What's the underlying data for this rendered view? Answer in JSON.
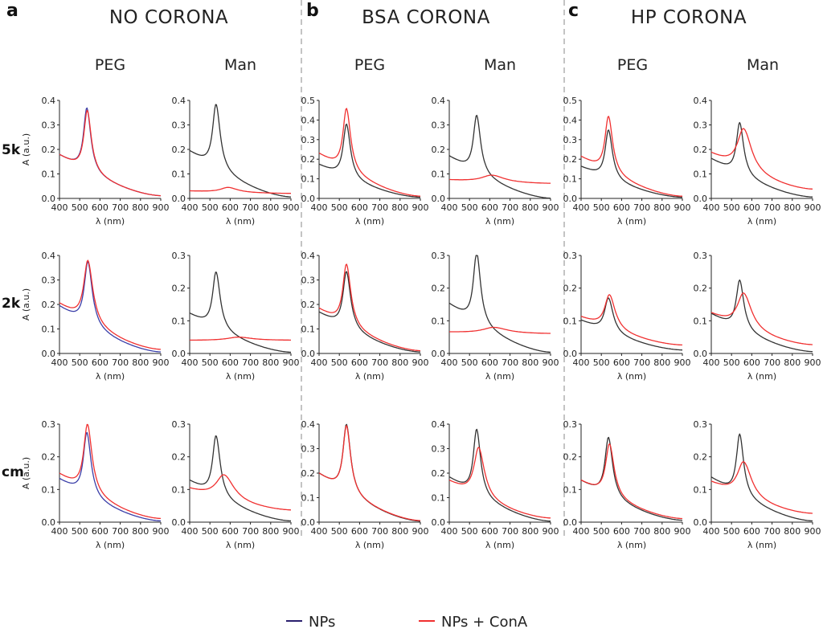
{
  "chart_data": {
    "type": "line",
    "x_range": [
      400,
      900
    ],
    "x_ticks": [
      400,
      500,
      600,
      700,
      800,
      900
    ],
    "xlabel": "λ (nm)",
    "ylabel": "A (a.u.)",
    "legend": {
      "position": "bottom",
      "items": [
        {
          "name": "NPs",
          "color": "#2a1f6e"
        },
        {
          "name": "NPs + ConA",
          "color": "#f03030"
        }
      ]
    },
    "panel_groups": [
      {
        "letter": "a",
        "title": "NO CORONA"
      },
      {
        "letter": "b",
        "title": "BSA CORONA"
      },
      {
        "letter": "c",
        "title": "HP CORONA"
      }
    ],
    "column_labels": [
      "PEG",
      "Man",
      "PEG",
      "Man",
      "PEG",
      "Man"
    ],
    "row_labels": [
      "5k",
      "2k",
      "cm"
    ],
    "panels": [
      {
        "id": "a-PEG-5k",
        "group": "NO CORONA",
        "ligand": "PEG",
        "row": "5k",
        "ylim": [
          0,
          0.4
        ],
        "yticks": [
          0,
          0.1,
          0.2,
          0.3,
          0.4
        ],
        "np_color": "#3a3ea8",
        "series": [
          {
            "name": "NPs",
            "peak": 0.37,
            "peak_nm": 535,
            "base": 0.175,
            "tail": 0.01,
            "width": 38
          },
          {
            "name": "NPs + ConA",
            "peak": 0.36,
            "peak_nm": 537,
            "base": 0.175,
            "tail": 0.01,
            "width": 39
          }
        ]
      },
      {
        "id": "a-Man-5k",
        "group": "NO CORONA",
        "ligand": "Man",
        "row": "5k",
        "ylim": [
          0,
          0.4
        ],
        "yticks": [
          0,
          0.1,
          0.2,
          0.3,
          0.4
        ],
        "np_color": "#333333",
        "series": [
          {
            "name": "NPs",
            "peak": 0.385,
            "peak_nm": 530,
            "base": 0.19,
            "tail": 0.005,
            "width": 40
          },
          {
            "name": "NPs + ConA",
            "peak": 0.045,
            "peak_nm": 590,
            "base": 0.03,
            "tail": 0.02,
            "width": 90
          }
        ]
      },
      {
        "id": "b-PEG-5k",
        "group": "BSA CORONA",
        "ligand": "PEG",
        "row": "5k",
        "ylim": [
          0,
          0.5
        ],
        "yticks": [
          0,
          0.1,
          0.2,
          0.3,
          0.4,
          0.5
        ],
        "np_color": "#333333",
        "series": [
          {
            "name": "NPs",
            "peak": 0.38,
            "peak_nm": 535,
            "base": 0.17,
            "tail": 0.005,
            "width": 38
          },
          {
            "name": "NPs + ConA",
            "peak": 0.46,
            "peak_nm": 535,
            "base": 0.225,
            "tail": 0.01,
            "width": 40
          }
        ]
      },
      {
        "id": "b-Man-5k",
        "group": "BSA CORONA",
        "ligand": "Man",
        "row": "5k",
        "ylim": [
          0,
          0.4
        ],
        "yticks": [
          0,
          0.1,
          0.2,
          0.3,
          0.4
        ],
        "np_color": "#333333",
        "series": [
          {
            "name": "NPs",
            "peak": 0.34,
            "peak_nm": 535,
            "base": 0.17,
            "tail": 0.0,
            "width": 38
          },
          {
            "name": "NPs + ConA",
            "peak": 0.095,
            "peak_nm": 610,
            "base": 0.075,
            "tail": 0.06,
            "width": 120
          }
        ]
      },
      {
        "id": "c-PEG-5k",
        "group": "HP CORONA",
        "ligand": "PEG",
        "row": "5k",
        "ylim": [
          0,
          0.5
        ],
        "yticks": [
          0,
          0.1,
          0.2,
          0.3,
          0.4,
          0.5
        ],
        "np_color": "#333333",
        "series": [
          {
            "name": "NPs",
            "peak": 0.35,
            "peak_nm": 535,
            "base": 0.16,
            "tail": 0.005,
            "width": 38
          },
          {
            "name": "NPs + ConA",
            "peak": 0.42,
            "peak_nm": 535,
            "base": 0.21,
            "tail": 0.01,
            "width": 40
          }
        ]
      },
      {
        "id": "c-Man-5k",
        "group": "HP CORONA",
        "ligand": "Man",
        "row": "5k",
        "ylim": [
          0,
          0.4
        ],
        "yticks": [
          0,
          0.1,
          0.2,
          0.3,
          0.4
        ],
        "np_color": "#333333",
        "series": [
          {
            "name": "NPs",
            "peak": 0.31,
            "peak_nm": 540,
            "base": 0.16,
            "tail": 0.005,
            "width": 38
          },
          {
            "name": "NPs + ConA",
            "peak": 0.285,
            "peak_nm": 560,
            "base": 0.18,
            "tail": 0.035,
            "width": 75
          }
        ]
      },
      {
        "id": "a-PEG-2k",
        "group": "NO CORONA",
        "ligand": "PEG",
        "row": "2k",
        "ylim": [
          0,
          0.4
        ],
        "yticks": [
          0,
          0.1,
          0.2,
          0.3,
          0.4
        ],
        "np_color": "#3a3ea8",
        "series": [
          {
            "name": "NPs",
            "peak": 0.375,
            "peak_nm": 540,
            "base": 0.19,
            "tail": 0.005,
            "width": 42
          },
          {
            "name": "NPs + ConA",
            "peak": 0.38,
            "peak_nm": 540,
            "base": 0.2,
            "tail": 0.015,
            "width": 48
          }
        ]
      },
      {
        "id": "a-Man-2k",
        "group": "NO CORONA",
        "ligand": "Man",
        "row": "2k",
        "ylim": [
          0,
          0.3
        ],
        "yticks": [
          0,
          0.1,
          0.2,
          0.3
        ],
        "np_color": "#333333",
        "series": [
          {
            "name": "NPs",
            "peak": 0.25,
            "peak_nm": 530,
            "base": 0.12,
            "tail": 0.003,
            "width": 40
          },
          {
            "name": "NPs + ConA",
            "peak": 0.05,
            "peak_nm": 640,
            "base": 0.04,
            "tail": 0.04,
            "width": 130
          }
        ]
      },
      {
        "id": "b-PEG-2k",
        "group": "BSA CORONA",
        "ligand": "PEG",
        "row": "2k",
        "ylim": [
          0,
          0.4
        ],
        "yticks": [
          0,
          0.1,
          0.2,
          0.3,
          0.4
        ],
        "np_color": "#333333",
        "series": [
          {
            "name": "NPs",
            "peak": 0.335,
            "peak_nm": 535,
            "base": 0.165,
            "tail": 0.005,
            "width": 40
          },
          {
            "name": "NPs + ConA",
            "peak": 0.365,
            "peak_nm": 535,
            "base": 0.18,
            "tail": 0.01,
            "width": 42
          }
        ]
      },
      {
        "id": "b-Man-2k",
        "group": "BSA CORONA",
        "ligand": "Man",
        "row": "2k",
        "ylim": [
          0,
          0.3
        ],
        "yticks": [
          0,
          0.1,
          0.2,
          0.3
        ],
        "np_color": "#333333",
        "series": [
          {
            "name": "NPs",
            "peak": 0.31,
            "peak_nm": 535,
            "base": 0.15,
            "tail": 0.003,
            "width": 38
          },
          {
            "name": "NPs + ConA",
            "peak": 0.08,
            "peak_nm": 620,
            "base": 0.065,
            "tail": 0.06,
            "width": 130
          }
        ]
      },
      {
        "id": "c-PEG-2k",
        "group": "HP CORONA",
        "ligand": "PEG",
        "row": "2k",
        "ylim": [
          0,
          0.3
        ],
        "yticks": [
          0,
          0.1,
          0.2,
          0.3
        ],
        "np_color": "#333333",
        "series": [
          {
            "name": "NPs",
            "peak": 0.17,
            "peak_nm": 535,
            "base": 0.1,
            "tail": 0.01,
            "width": 45
          },
          {
            "name": "NPs + ConA",
            "peak": 0.18,
            "peak_nm": 540,
            "base": 0.11,
            "tail": 0.025,
            "width": 55
          }
        ]
      },
      {
        "id": "c-Man-2k",
        "group": "HP CORONA",
        "ligand": "Man",
        "row": "2k",
        "ylim": [
          0,
          0.3
        ],
        "yticks": [
          0,
          0.1,
          0.2,
          0.3
        ],
        "np_color": "#333333",
        "series": [
          {
            "name": "NPs",
            "peak": 0.225,
            "peak_nm": 540,
            "base": 0.12,
            "tail": 0.005,
            "width": 40
          },
          {
            "name": "NPs + ConA",
            "peak": 0.185,
            "peak_nm": 560,
            "base": 0.12,
            "tail": 0.025,
            "width": 75
          }
        ]
      },
      {
        "id": "a-PEG-cm",
        "group": "NO CORONA",
        "ligand": "PEG",
        "row": "cm",
        "ylim": [
          0,
          0.3
        ],
        "yticks": [
          0,
          0.1,
          0.2,
          0.3
        ],
        "np_color": "#3a3ea8",
        "series": [
          {
            "name": "NPs",
            "peak": 0.275,
            "peak_nm": 535,
            "base": 0.13,
            "tail": 0.003,
            "width": 40
          },
          {
            "name": "NPs + ConA",
            "peak": 0.3,
            "peak_nm": 538,
            "base": 0.145,
            "tail": 0.01,
            "width": 44
          }
        ]
      },
      {
        "id": "a-Man-cm",
        "group": "NO CORONA",
        "ligand": "Man",
        "row": "cm",
        "ylim": [
          0,
          0.3
        ],
        "yticks": [
          0,
          0.1,
          0.2,
          0.3
        ],
        "np_color": "#333333",
        "series": [
          {
            "name": "NPs",
            "peak": 0.265,
            "peak_nm": 530,
            "base": 0.125,
            "tail": 0.003,
            "width": 40
          },
          {
            "name": "NPs + ConA",
            "peak": 0.145,
            "peak_nm": 570,
            "base": 0.1,
            "tail": 0.035,
            "width": 95
          }
        ]
      },
      {
        "id": "b-PEG-cm",
        "group": "BSA CORONA",
        "ligand": "PEG",
        "row": "cm",
        "ylim": [
          0,
          0.4
        ],
        "yticks": [
          0,
          0.1,
          0.2,
          0.3,
          0.4
        ],
        "np_color": "#333333",
        "series": [
          {
            "name": "NPs",
            "peak": 0.4,
            "peak_nm": 535,
            "base": 0.195,
            "tail": 0.003,
            "width": 40
          },
          {
            "name": "NPs + ConA",
            "peak": 0.395,
            "peak_nm": 535,
            "base": 0.195,
            "tail": 0.005,
            "width": 40
          }
        ]
      },
      {
        "id": "b-Man-cm",
        "group": "BSA CORONA",
        "ligand": "Man",
        "row": "cm",
        "ylim": [
          0,
          0.4
        ],
        "yticks": [
          0,
          0.1,
          0.2,
          0.3,
          0.4
        ],
        "np_color": "#333333",
        "series": [
          {
            "name": "NPs",
            "peak": 0.38,
            "peak_nm": 535,
            "base": 0.18,
            "tail": 0.003,
            "width": 38
          },
          {
            "name": "NPs + ConA",
            "peak": 0.305,
            "peak_nm": 545,
            "base": 0.165,
            "tail": 0.015,
            "width": 55
          }
        ]
      },
      {
        "id": "c-PEG-cm",
        "group": "HP CORONA",
        "ligand": "PEG",
        "row": "cm",
        "ylim": [
          0,
          0.3
        ],
        "yticks": [
          0,
          0.1,
          0.2,
          0.3
        ],
        "np_color": "#333333",
        "series": [
          {
            "name": "NPs",
            "peak": 0.26,
            "peak_nm": 535,
            "base": 0.125,
            "tail": 0.005,
            "width": 40
          },
          {
            "name": "NPs + ConA",
            "peak": 0.24,
            "peak_nm": 540,
            "base": 0.125,
            "tail": 0.01,
            "width": 45
          }
        ]
      },
      {
        "id": "c-Man-cm",
        "group": "HP CORONA",
        "ligand": "Man",
        "row": "cm",
        "ylim": [
          0,
          0.3
        ],
        "yticks": [
          0,
          0.1,
          0.2,
          0.3
        ],
        "np_color": "#333333",
        "series": [
          {
            "name": "NPs",
            "peak": 0.27,
            "peak_nm": 540,
            "base": 0.135,
            "tail": 0.003,
            "width": 38
          },
          {
            "name": "NPs + ConA",
            "peak": 0.185,
            "peak_nm": 560,
            "base": 0.12,
            "tail": 0.025,
            "width": 75
          }
        ]
      }
    ]
  }
}
